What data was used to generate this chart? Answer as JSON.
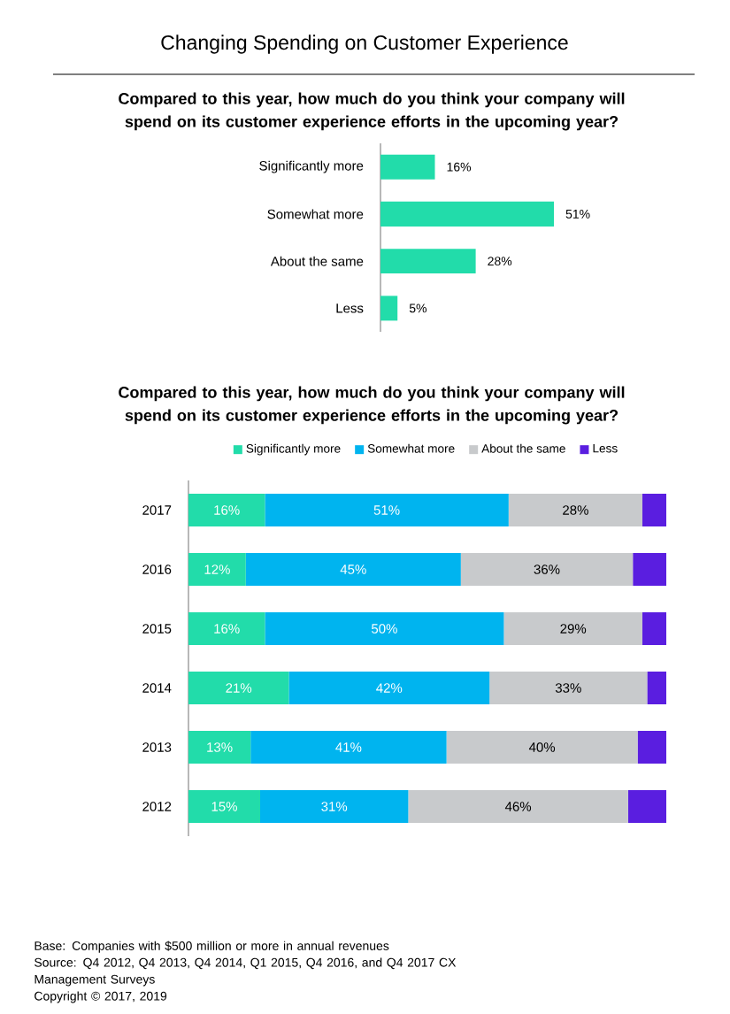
{
  "chart_data": [
    {
      "type": "bar",
      "orientation": "horizontal",
      "title": "Changing Spending on Customer Experience",
      "subtitle": "Compared to this year, how much do you think your company will spend on its customer experience efforts in the upcoming year?",
      "categories": [
        "Significantly more",
        "Somewhat more",
        "About the same",
        "Less"
      ],
      "values": [
        16,
        51,
        28,
        5
      ],
      "value_labels": [
        "16%",
        "51%",
        "28%",
        "5%"
      ],
      "color": "#22dcaa"
    },
    {
      "type": "bar",
      "orientation": "horizontal",
      "stacked": true,
      "legend": "top",
      "title": "Compared to this year, how much do you think your company will spend on its customer experience efforts in the upcoming year?",
      "categories": [
        "2017",
        "2016",
        "2015",
        "2014",
        "2013",
        "2012"
      ],
      "series": [
        {
          "name": "Significantly more",
          "color": "#22dcaa",
          "values": [
            16,
            12,
            16,
            21,
            13,
            15
          ],
          "value_labels": [
            "16%",
            "12%",
            "16%",
            "21%",
            "13%",
            "15%"
          ]
        },
        {
          "name": "Somewhat more",
          "color": "#00b4ef",
          "values": [
            51,
            45,
            50,
            42,
            41,
            31
          ],
          "value_labels": [
            "51%",
            "45%",
            "50%",
            "42%",
            "41%",
            "31%"
          ]
        },
        {
          "name": "About the same",
          "color": "#c8cacc",
          "values": [
            28,
            36,
            29,
            33,
            40,
            46
          ],
          "value_labels": [
            "28%",
            "36%",
            "29%",
            "33%",
            "40%",
            "46%"
          ]
        },
        {
          "name": "Less",
          "color": "#5a1ee0",
          "values": [
            5,
            7,
            5,
            4,
            6,
            8
          ]
        }
      ],
      "annotations": [
        "Base:   Companies with $500 million or more in annual revenues",
        "Source:   Q4 2012, Q4 2013, Q4 2014, Q1 2015, Q4 2016, and Q4 2017 CX Management Surveys",
        "Copyright © 2017, 2019"
      ]
    }
  ]
}
